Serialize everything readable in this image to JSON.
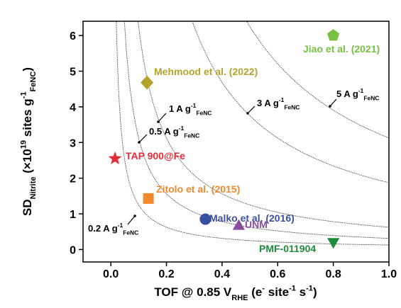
{
  "chart_data": {
    "type": "scatter",
    "xlim": [
      -0.1,
      1.0
    ],
    "ylim": [
      -0.35,
      6.4
    ],
    "xticks": [
      {
        "value": 0,
        "label": "0.0"
      },
      0.2,
      0.4,
      0.6,
      0.8,
      {
        "value": 1,
        "label": "1.0"
      }
    ],
    "yticks": [
      0,
      1,
      2,
      3,
      4,
      5,
      6
    ],
    "xlabel": [
      {
        "text": "TOF @ 0.85 V"
      },
      {
        "text": "RHE",
        "shift": "sub"
      },
      {
        "text": " (e"
      },
      {
        "text": "-",
        "shift": "sup"
      },
      {
        "text": " site"
      },
      {
        "text": "-1",
        "shift": "sup"
      },
      {
        "text": " s"
      },
      {
        "text": "-1",
        "shift": "sup"
      },
      {
        "text": ")"
      }
    ],
    "ylabel": [
      {
        "text": "SD"
      },
      {
        "text": "Nitrite",
        "shift": "sub"
      },
      {
        "text": " (×10"
      },
      {
        "text": "19",
        "shift": "sup"
      },
      {
        "text": " sites g"
      },
      {
        "text": "-1",
        "shift": "sup"
      },
      {
        "text": "FeNC",
        "shift": "sub"
      },
      {
        "text": ")"
      }
    ],
    "curves": [
      {
        "value": 0.125,
        "label": [
          {
            "text": "0.2 A g"
          },
          {
            "text": "-1",
            "shift": "sup"
          },
          {
            "text": "FeNC",
            "shift": "sub"
          }
        ]
      },
      {
        "value": 0.3125,
        "label": [
          {
            "text": "0.5 A g"
          },
          {
            "text": "-1",
            "shift": "sup"
          },
          {
            "text": "FeNC",
            "shift": "sub"
          }
        ]
      },
      {
        "value": 0.625,
        "label": [
          {
            "text": "1 A g"
          },
          {
            "text": "-1",
            "shift": "sup"
          },
          {
            "text": "FeNC",
            "shift": "sub"
          }
        ]
      },
      {
        "value": 1.875,
        "label": [
          {
            "text": "3 A g"
          },
          {
            "text": "-1",
            "shift": "sup"
          },
          {
            "text": "FeNC",
            "shift": "sub"
          }
        ]
      },
      {
        "value": 3.125,
        "label": [
          {
            "text": "5 A g"
          },
          {
            "text": "-1",
            "shift": "sup"
          },
          {
            "text": "FeNC",
            "shift": "sub"
          }
        ]
      }
    ],
    "series": [
      {
        "name": "Jiao et al. (2021)",
        "color": "#77c043",
        "marker": "pentagon",
        "x": [
          0.8
        ],
        "values": [
          6.0
        ]
      },
      {
        "name": "Mehmood et al. (2022)",
        "color": "#b3a32c",
        "marker": "diamond",
        "x": [
          0.13
        ],
        "values": [
          4.68
        ]
      },
      {
        "name": "TAP 900@Fe",
        "color": "#e52d3a",
        "marker": "star",
        "x": [
          0.015
        ],
        "values": [
          2.55
        ]
      },
      {
        "name": "Zitolo et al. (2015)",
        "color": "#f0892a",
        "marker": "square",
        "x": [
          0.135
        ],
        "values": [
          1.43
        ]
      },
      {
        "name": "Malko et al. (2016)",
        "color": "#3b4fa0",
        "marker": "circle",
        "x": [
          0.34
        ],
        "values": [
          0.85
        ]
      },
      {
        "name": "UNM",
        "color": "#8a4ea0",
        "marker": "triangle-up",
        "x": [
          0.46
        ],
        "values": [
          0.65
        ]
      },
      {
        "name": "PMF-011904",
        "color": "#1f8a3c",
        "marker": "triangle-down",
        "x": [
          0.8
        ],
        "values": [
          0.22
        ]
      }
    ]
  }
}
